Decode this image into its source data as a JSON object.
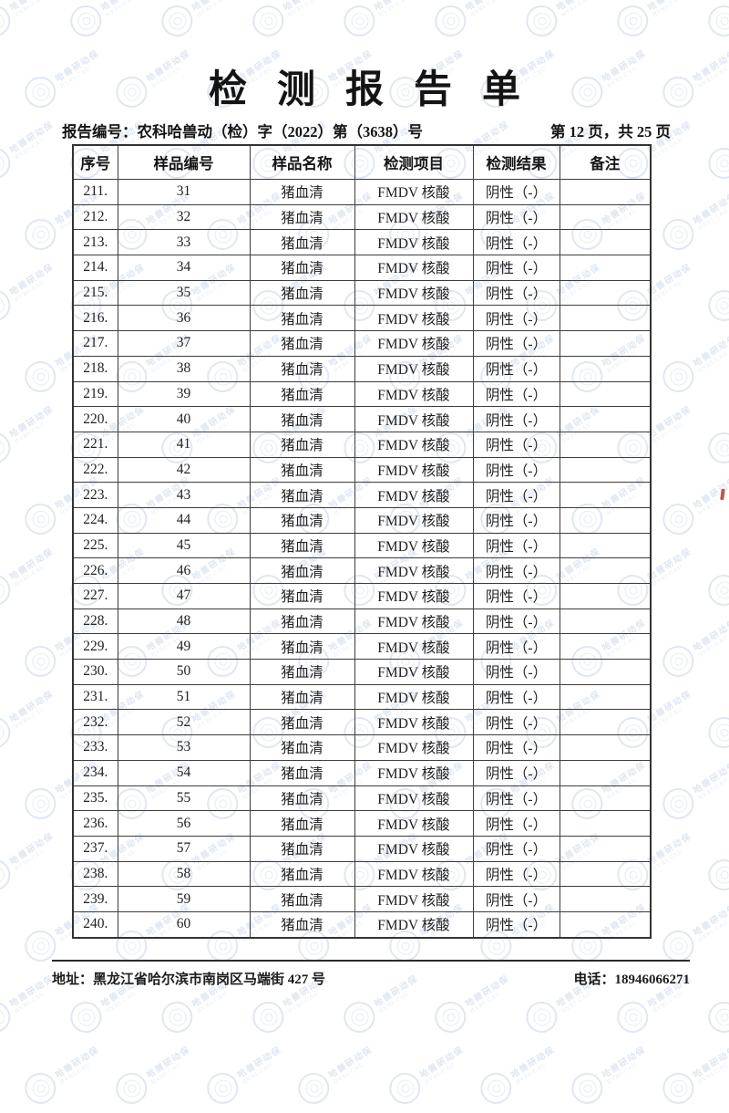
{
  "page": {
    "title": "检测报告单",
    "report_no": "报告编号：农科哈兽动（检）字（2022）第（3638）号",
    "page_info": "第 12 页，共 25 页"
  },
  "table": {
    "headers": [
      "序号",
      "样品编号",
      "样品名称",
      "检测项目",
      "检测结果",
      "备注"
    ],
    "rows": [
      [
        "211.",
        "31",
        "猪血清",
        "FMDV 核酸",
        "阴性（-）",
        ""
      ],
      [
        "212.",
        "32",
        "猪血清",
        "FMDV 核酸",
        "阴性（-）",
        ""
      ],
      [
        "213.",
        "33",
        "猪血清",
        "FMDV 核酸",
        "阴性（-）",
        ""
      ],
      [
        "214.",
        "34",
        "猪血清",
        "FMDV 核酸",
        "阴性（-）",
        ""
      ],
      [
        "215.",
        "35",
        "猪血清",
        "FMDV 核酸",
        "阴性（-）",
        ""
      ],
      [
        "216.",
        "36",
        "猪血清",
        "FMDV 核酸",
        "阴性（-）",
        ""
      ],
      [
        "217.",
        "37",
        "猪血清",
        "FMDV 核酸",
        "阴性（-）",
        ""
      ],
      [
        "218.",
        "38",
        "猪血清",
        "FMDV 核酸",
        "阴性（-）",
        ""
      ],
      [
        "219.",
        "39",
        "猪血清",
        "FMDV 核酸",
        "阴性（-）",
        ""
      ],
      [
        "220.",
        "40",
        "猪血清",
        "FMDV 核酸",
        "阴性（-）",
        ""
      ],
      [
        "221.",
        "41",
        "猪血清",
        "FMDV 核酸",
        "阴性（-）",
        ""
      ],
      [
        "222.",
        "42",
        "猪血清",
        "FMDV 核酸",
        "阴性（-）",
        ""
      ],
      [
        "223.",
        "43",
        "猪血清",
        "FMDV 核酸",
        "阴性（-）",
        ""
      ],
      [
        "224.",
        "44",
        "猪血清",
        "FMDV 核酸",
        "阴性（-）",
        ""
      ],
      [
        "225.",
        "45",
        "猪血清",
        "FMDV 核酸",
        "阴性（-）",
        ""
      ],
      [
        "226.",
        "46",
        "猪血清",
        "FMDV 核酸",
        "阴性（-）",
        ""
      ],
      [
        "227.",
        "47",
        "猪血清",
        "FMDV 核酸",
        "阴性（-）",
        ""
      ],
      [
        "228.",
        "48",
        "猪血清",
        "FMDV 核酸",
        "阴性（-）",
        ""
      ],
      [
        "229.",
        "49",
        "猪血清",
        "FMDV 核酸",
        "阴性（-）",
        ""
      ],
      [
        "230.",
        "50",
        "猪血清",
        "FMDV 核酸",
        "阴性（-）",
        ""
      ],
      [
        "231.",
        "51",
        "猪血清",
        "FMDV 核酸",
        "阴性（-）",
        ""
      ],
      [
        "232.",
        "52",
        "猪血清",
        "FMDV 核酸",
        "阴性（-）",
        ""
      ],
      [
        "233.",
        "53",
        "猪血清",
        "FMDV 核酸",
        "阴性（-）",
        ""
      ],
      [
        "234.",
        "54",
        "猪血清",
        "FMDV 核酸",
        "阴性（-）",
        ""
      ],
      [
        "235.",
        "55",
        "猪血清",
        "FMDV 核酸",
        "阴性（-）",
        ""
      ],
      [
        "236.",
        "56",
        "猪血清",
        "FMDV 核酸",
        "阴性（-）",
        ""
      ],
      [
        "237.",
        "57",
        "猪血清",
        "FMDV 核酸",
        "阴性（-）",
        ""
      ],
      [
        "238.",
        "58",
        "猪血清",
        "FMDV 核酸",
        "阴性（-）",
        ""
      ],
      [
        "239.",
        "59",
        "猪血清",
        "FMDV 核酸",
        "阴性（-）",
        ""
      ],
      [
        "240.",
        "60",
        "猪血清",
        "FMDV 核酸",
        "阴性（-）",
        ""
      ]
    ]
  },
  "footer": {
    "address": "地址：黑龙江省哈尔滨市南岗区马端街 427 号",
    "phone": "电话：18946066271"
  },
  "watermark": {
    "text_cn": "哈兽研动保",
    "text_en": "HVRI-CAU",
    "color": "#ccd8ea"
  },
  "artifacts": {
    "red_mark_color": "#b03a2e"
  }
}
